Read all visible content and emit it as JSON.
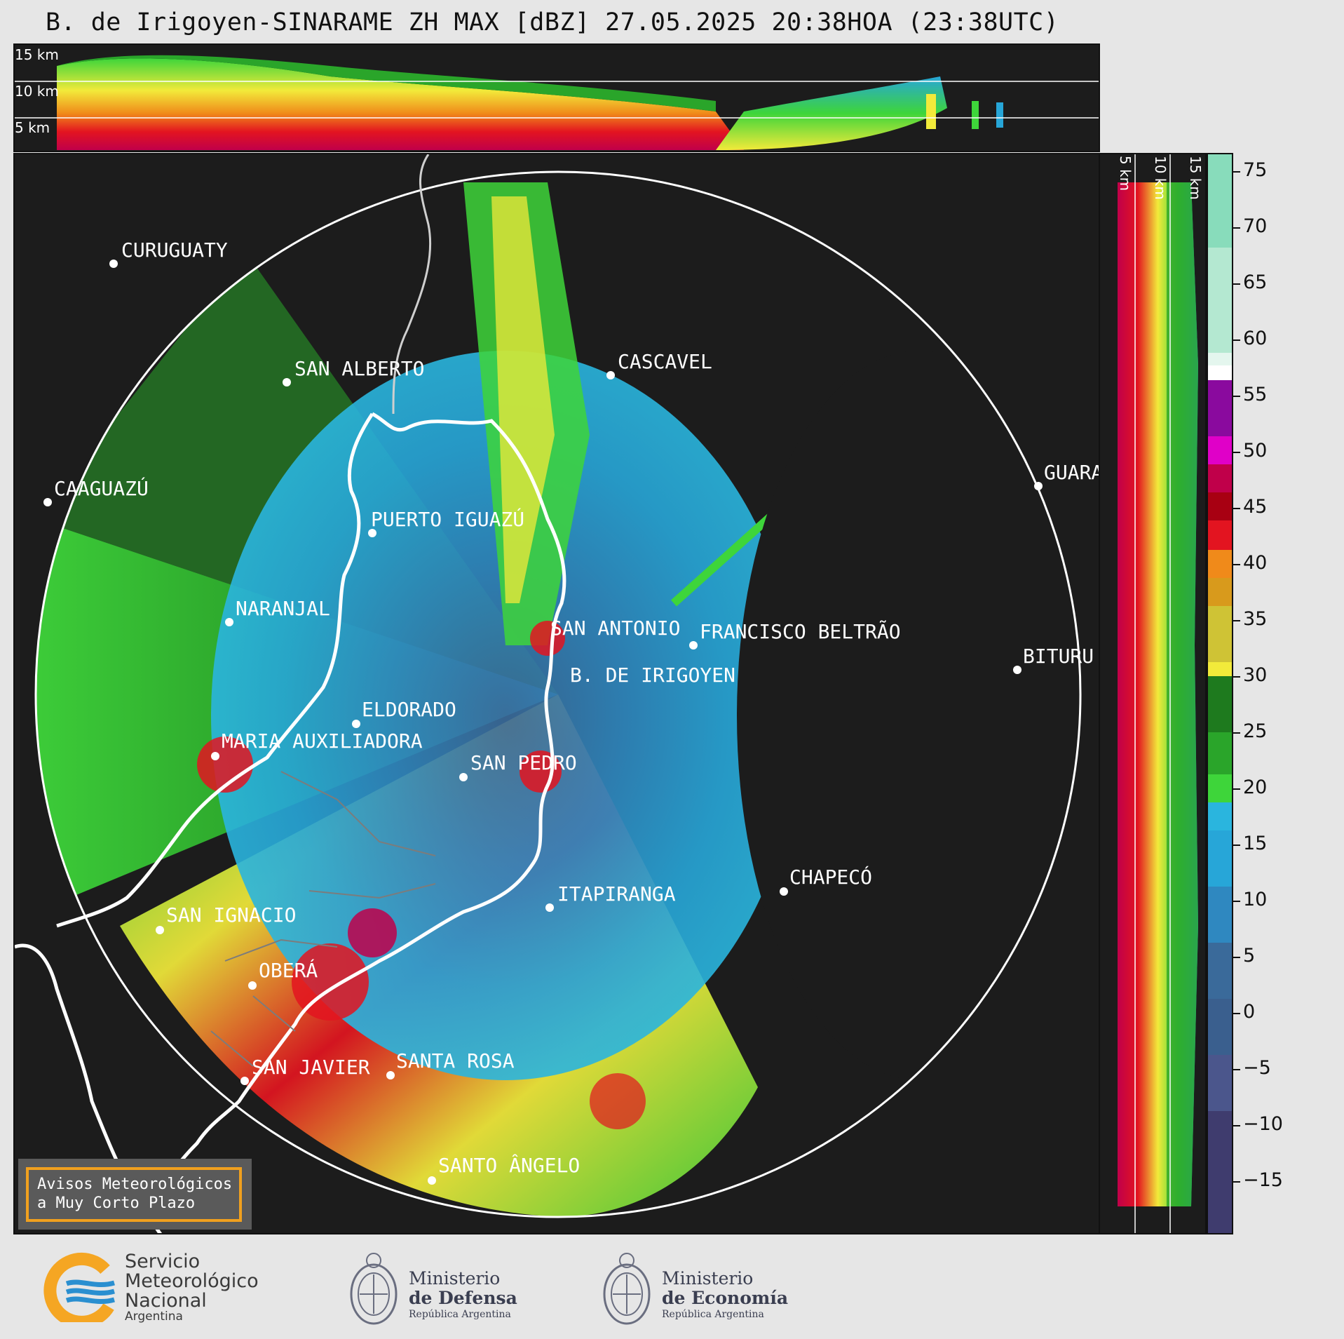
{
  "title": "B. de Irigoyen-SINARAME ZH MAX [dBZ] 27.05.2025 20:38HOA (23:38UTC)",
  "top_panel": {
    "altitude_labels": [
      "15 km",
      "10 km",
      "5 km"
    ]
  },
  "right_panel": {
    "altitude_labels": [
      "5 km",
      "10 km",
      "15 km"
    ]
  },
  "colorbar": {
    "ticks": [
      "75",
      "70",
      "65",
      "60",
      "55",
      "50",
      "45",
      "40",
      "35",
      "30",
      "25",
      "20",
      "15",
      "10",
      "5",
      "0",
      "−5",
      "−10",
      "−15"
    ],
    "range": [
      -20,
      77
    ],
    "colors": {
      "minus20": "#3f3c6e",
      "minus10": "#4b568c",
      "minus5": "#3a5f8e",
      "zero": "#3a6a9a",
      "ten": "#2f88c0",
      "fifteen": "#27a6d8",
      "eighteen": "#2ab5de",
      "twenty": "#3ed53a",
      "twentyfive": "#2aa52a",
      "thirty": "#1e7a1e",
      "thirtyone": "#f2ea3a",
      "thirtyfive": "#cfc335",
      "forty": "#d89a1c",
      "fortytwo": "#f08a1a",
      "fortythree": "#e31420",
      "fortyeight": "#a80012",
      "fifty": "#c0004a",
      "fiftyfive": "#e000c8",
      "fiftyeight": "#8a0a9e",
      "sixty": "#ffffff",
      "sixtyfive": "#c6eedd",
      "seventyfive": "#88dcbb"
    }
  },
  "cities": [
    {
      "name": "CURUGUATY"
    },
    {
      "name": "SAN ALBERTO"
    },
    {
      "name": "CASCAVEL"
    },
    {
      "name": "CAAGUAZÚ"
    },
    {
      "name": "GUARA"
    },
    {
      "name": "PUERTO IGUAZÚ"
    },
    {
      "name": "NARANJAL"
    },
    {
      "name": "SAN ANTONIO"
    },
    {
      "name": "FRANCISCO BELTRÃO"
    },
    {
      "name": "BITURU"
    },
    {
      "name": "B. DE IRIGOYEN"
    },
    {
      "name": "ELDORADO"
    },
    {
      "name": "MARIA AUXILIADORA"
    },
    {
      "name": "SAN PEDRO"
    },
    {
      "name": "CHAPECÓ"
    },
    {
      "name": "ITAPIRANGA"
    },
    {
      "name": "SAN IGNACIO"
    },
    {
      "name": "OBERÁ"
    },
    {
      "name": "SAN JAVIER"
    },
    {
      "name": "SANTA ROSA"
    },
    {
      "name": "SANTO ÂNGELO"
    }
  ],
  "badge": {
    "line1": "Avisos Meteorológicos",
    "line2": "a Muy Corto Plazo"
  },
  "logos": {
    "smn": {
      "line1": "Servicio",
      "line2": "Meteorológico",
      "line3": "Nacional",
      "line4": "Argentina"
    },
    "defensa": {
      "line1": "Ministerio",
      "line2": "de Defensa",
      "line3": "República Argentina"
    },
    "economia": {
      "line1": "Ministerio",
      "line2": "de Economía",
      "line3": "República Argentina"
    }
  }
}
